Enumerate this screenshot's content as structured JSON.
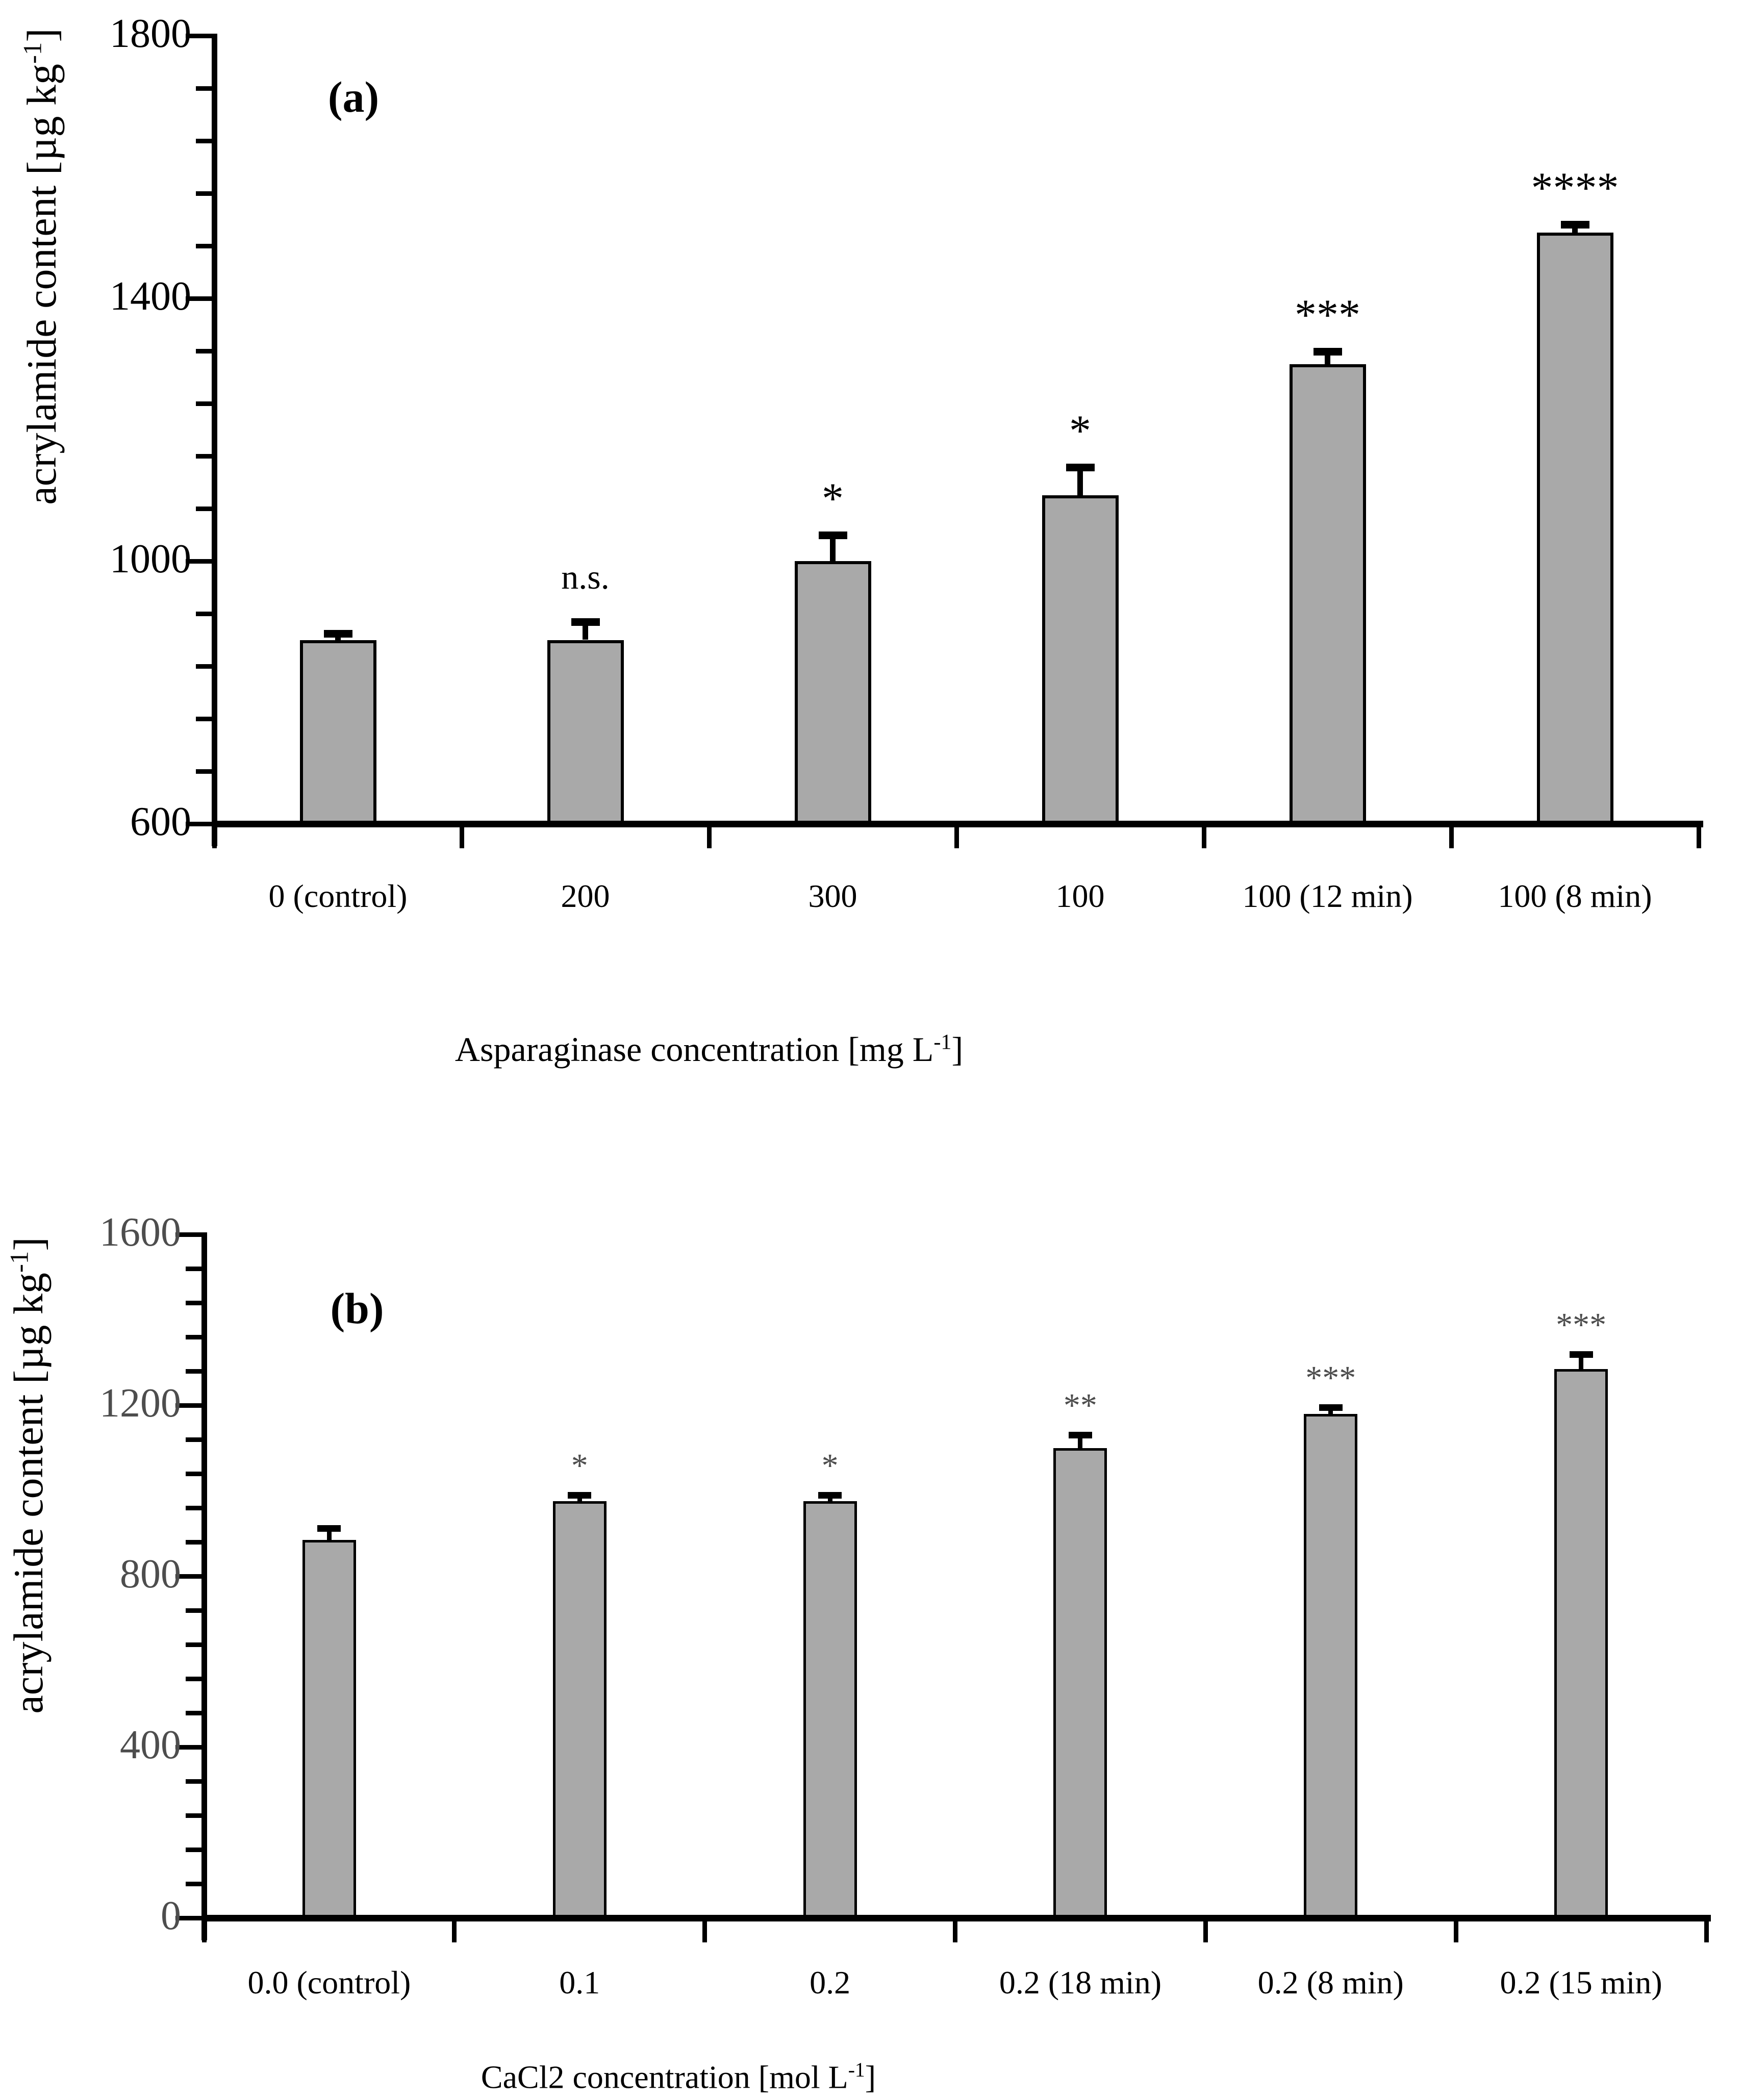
{
  "figure": {
    "background": "#ffffff",
    "bar_fill": "#a9a9a9",
    "bar_border": "#000000",
    "axis_color": "#000000"
  },
  "chart_data": [
    {
      "type": "bar",
      "panel_letter": "(a)",
      "categories": [
        "0 (control)",
        "200",
        "300",
        "100",
        "100 (12 min)",
        "100 (8 min)"
      ],
      "values": [
        880,
        880,
        1000,
        1100,
        1300,
        1500
      ],
      "errors_plus": [
        15,
        33,
        45,
        48,
        25,
        18
      ],
      "significance": [
        "",
        "n.s.",
        "*",
        "*",
        "***",
        "****"
      ],
      "xlabel": "Asparaginase concentration [mg L⁻¹]",
      "xlabel_parts": {
        "pre": "Asparaginase concentration [mg L",
        "sup": "-1",
        "post": "]"
      },
      "ylabel": "acrylamide content [µg kg⁻¹]",
      "ylabel_parts": {
        "pre": "acrylamide content [µg kg",
        "sup": "-1",
        "post": "]"
      },
      "ylim": [
        600,
        1800
      ],
      "yticks": [
        1800,
        1400,
        1000,
        600
      ],
      "minor_tick_unit": 80,
      "grid": false,
      "legend": "none",
      "bar_color": "#a9a9a9",
      "bar_border_color": "#000000",
      "error_bar_color": "#000000",
      "tick_label_color": "#000000",
      "sig_color": "#000000"
    },
    {
      "type": "bar",
      "panel_letter": "(b)",
      "categories": [
        "0.0 (control)",
        "0.1",
        "0.2",
        "0.2 (18 min)",
        "0.2 (8 min)",
        "0.2 (15 min)"
      ],
      "values": [
        885,
        975,
        975,
        1100,
        1180,
        1285
      ],
      "errors_plus": [
        35,
        22,
        22,
        38,
        22,
        42
      ],
      "significance": [
        "",
        "*",
        "*",
        "**",
        "***",
        "***"
      ],
      "xlabel": "CaCl2 concentration [mol L⁻¹]",
      "xlabel_parts": {
        "pre": "CaCl2 concentration [mol L",
        "sup": "-1",
        "post": "]"
      },
      "ylabel": "acrylamide content [µg kg⁻¹]",
      "ylabel_parts": {
        "pre": "acrylamide content [µg kg",
        "sup": "-1",
        "post": "]"
      },
      "ylim": [
        0,
        1600
      ],
      "yticks": [
        1600,
        1200,
        800,
        400,
        0
      ],
      "minor_tick_unit": 80,
      "grid": false,
      "legend": "none",
      "bar_color": "#a9a9a9",
      "bar_border_color": "#000000",
      "error_bar_color": "#000000",
      "tick_label_color": "#4d4d4d",
      "sig_color": "#4d4d4d"
    }
  ]
}
